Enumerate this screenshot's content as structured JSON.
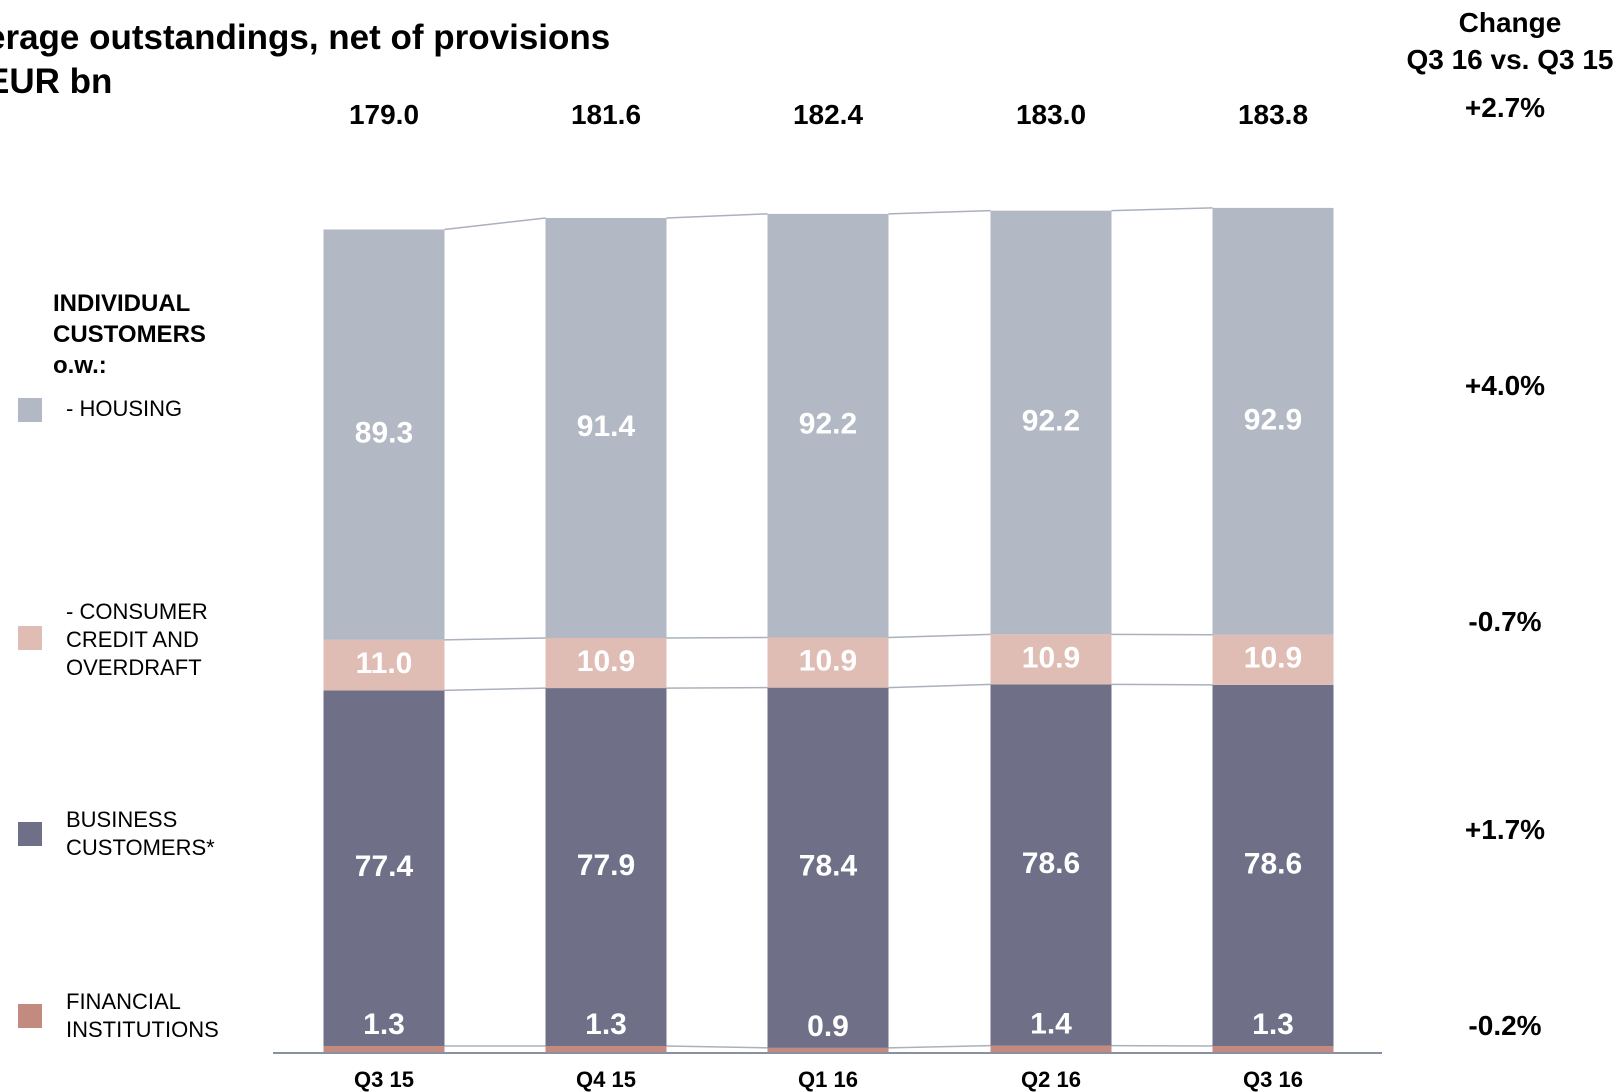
{
  "chart_data": {
    "type": "bar",
    "stacked": true,
    "title": "erage outstandings, net of provisions",
    "subtitle": "EUR bn",
    "categories": [
      "Q3 15",
      "Q4 15",
      "Q1 16",
      "Q2 16",
      "Q3 16"
    ],
    "totals": [
      "179.0",
      "181.6",
      "182.4",
      "183.0",
      "183.8"
    ],
    "series": [
      {
        "name": "FINANCIAL INSTITUTIONS",
        "color": "#c38a80",
        "values": [
          1.3,
          1.3,
          0.9,
          1.4,
          1.3
        ],
        "labels": [
          "1.3",
          "1.3",
          "0.9",
          "1.4",
          "1.3"
        ],
        "change": "-0.2%"
      },
      {
        "name": "BUSINESS CUSTOMERS*",
        "color": "#6f6f87",
        "values": [
          77.4,
          77.9,
          78.4,
          78.6,
          78.6
        ],
        "labels": [
          "77.4",
          "77.9",
          "78.4",
          "78.6",
          "78.6"
        ],
        "change": "+1.7%"
      },
      {
        "name": "- CONSUMER CREDIT AND OVERDRAFT",
        "color": "#dfbdb5",
        "values": [
          11.0,
          10.9,
          10.9,
          10.9,
          10.9
        ],
        "labels": [
          "11.0",
          "10.9",
          "10.9",
          "10.9",
          "10.9"
        ],
        "change": "-0.7%"
      },
      {
        "name": "- HOUSING",
        "color": "#b2b8c4",
        "values": [
          89.3,
          91.4,
          92.2,
          92.2,
          92.9
        ],
        "labels": [
          "89.3",
          "91.4",
          "92.2",
          "92.2",
          "92.9"
        ],
        "change": "+4.0%"
      }
    ],
    "change_header": "Change Q3 16 vs. Q3 15",
    "total_change": "+2.7%",
    "legend_group_title": "INDIVIDUAL CUSTOMERS o.w.:",
    "legend_position": "left",
    "grid": false
  },
  "legend": {
    "group_line1": "INDIVIDUAL",
    "group_line2": "CUSTOMERS",
    "group_line3": "o.w.:",
    "housing": "- HOUSING",
    "consumer_line1": "- CONSUMER",
    "consumer_line2": "CREDIT AND",
    "consumer_line3": "OVERDRAFT",
    "business_line1": "BUSINESS",
    "business_line2": "CUSTOMERS*",
    "financial_line1": "FINANCIAL",
    "financial_line2": "INSTITUTIONS"
  },
  "header": {
    "title_line1": "erage outstandings, net of provisions",
    "title_line2": "EUR bn",
    "change_line1": "Change",
    "change_line2": "Q3 16 vs. Q3 15"
  }
}
